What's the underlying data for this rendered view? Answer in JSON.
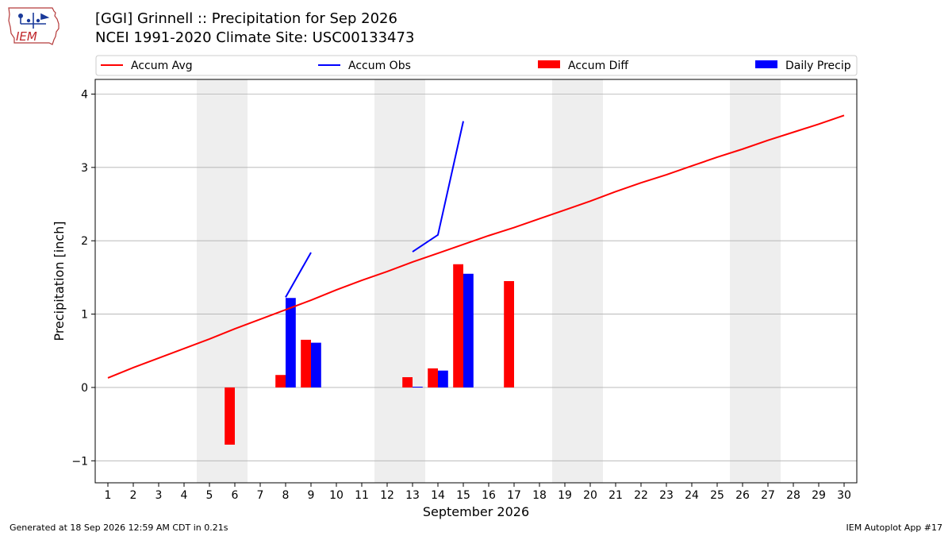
{
  "header": {
    "title_line1": "[GGI] Grinnell :: Precipitation for Sep 2026",
    "title_line2": "NCEI 1991-2020 Climate Site: USC00133473",
    "logo_text": "IEM"
  },
  "footer": {
    "left": "Generated at 18 Sep 2026 12:59 AM CDT in 0.21s",
    "right": "IEM Autoplot App #17"
  },
  "colors": {
    "avg": "#ff0000",
    "obs": "#0000ff",
    "diff": "#ff0000",
    "daily": "#0000ff",
    "weekend": "#eeeeee",
    "grid": "#b0b0b0"
  },
  "chart_data": {
    "type": "bar",
    "xlabel": "September 2026",
    "ylabel": "Precipitation [inch]",
    "xlim": [
      0.5,
      30.5
    ],
    "ylim": [
      -1.3,
      4.2
    ],
    "yticks": [
      -1,
      0,
      1,
      2,
      3,
      4
    ],
    "ytick_labels": [
      "−1",
      "0",
      "1",
      "2",
      "3",
      "4"
    ],
    "x": [
      1,
      2,
      3,
      4,
      5,
      6,
      7,
      8,
      9,
      10,
      11,
      12,
      13,
      14,
      15,
      16,
      17,
      18,
      19,
      20,
      21,
      22,
      23,
      24,
      25,
      26,
      27,
      28,
      29,
      30
    ],
    "weekend_bands": [
      [
        4.5,
        6.5
      ],
      [
        11.5,
        13.5
      ],
      [
        18.5,
        20.5
      ],
      [
        25.5,
        27.5
      ]
    ],
    "legend": {
      "placement": "top",
      "entries": [
        {
          "label": "Accum Avg",
          "kind": "line",
          "color": "#ff0000"
        },
        {
          "label": "Accum Obs",
          "kind": "line",
          "color": "#0000ff"
        },
        {
          "label": "Accum Diff",
          "kind": "bar",
          "color": "#ff0000"
        },
        {
          "label": "Daily Precip",
          "kind": "bar",
          "color": "#0000ff"
        }
      ]
    },
    "series": [
      {
        "name": "Accum Avg",
        "type": "line",
        "values": [
          0.13,
          0.27,
          0.4,
          0.53,
          0.66,
          0.8,
          0.93,
          1.06,
          1.19,
          1.33,
          1.46,
          1.58,
          1.71,
          1.83,
          1.95,
          2.07,
          2.18,
          2.3,
          2.42,
          2.54,
          2.67,
          2.79,
          2.9,
          3.02,
          3.14,
          3.25,
          3.37,
          3.48,
          3.59,
          3.71
        ]
      },
      {
        "name": "Accum Obs",
        "type": "line",
        "values": [
          null,
          null,
          null,
          null,
          null,
          null,
          null,
          1.23,
          1.84,
          null,
          null,
          null,
          1.85,
          2.08,
          3.63,
          null,
          null,
          null,
          null,
          null,
          null,
          null,
          null,
          null,
          null,
          null,
          null,
          null,
          null,
          null
        ]
      },
      {
        "name": "Accum Diff",
        "type": "bar",
        "values": [
          0,
          0,
          0,
          0,
          0,
          -0.78,
          0,
          0.17,
          0.65,
          0,
          0,
          0,
          0.14,
          0.26,
          1.68,
          0,
          1.45,
          0,
          0,
          0,
          0,
          0,
          0,
          0,
          0,
          0,
          0,
          0,
          0,
          0
        ]
      },
      {
        "name": "Daily Precip",
        "type": "bar",
        "values": [
          0,
          0,
          0,
          0,
          0,
          0,
          0,
          1.22,
          0.61,
          0,
          0,
          0,
          0.01,
          0.23,
          1.55,
          0,
          0,
          0,
          0,
          0,
          0,
          0,
          0,
          0,
          0,
          0,
          0,
          0,
          0,
          0
        ]
      }
    ]
  }
}
